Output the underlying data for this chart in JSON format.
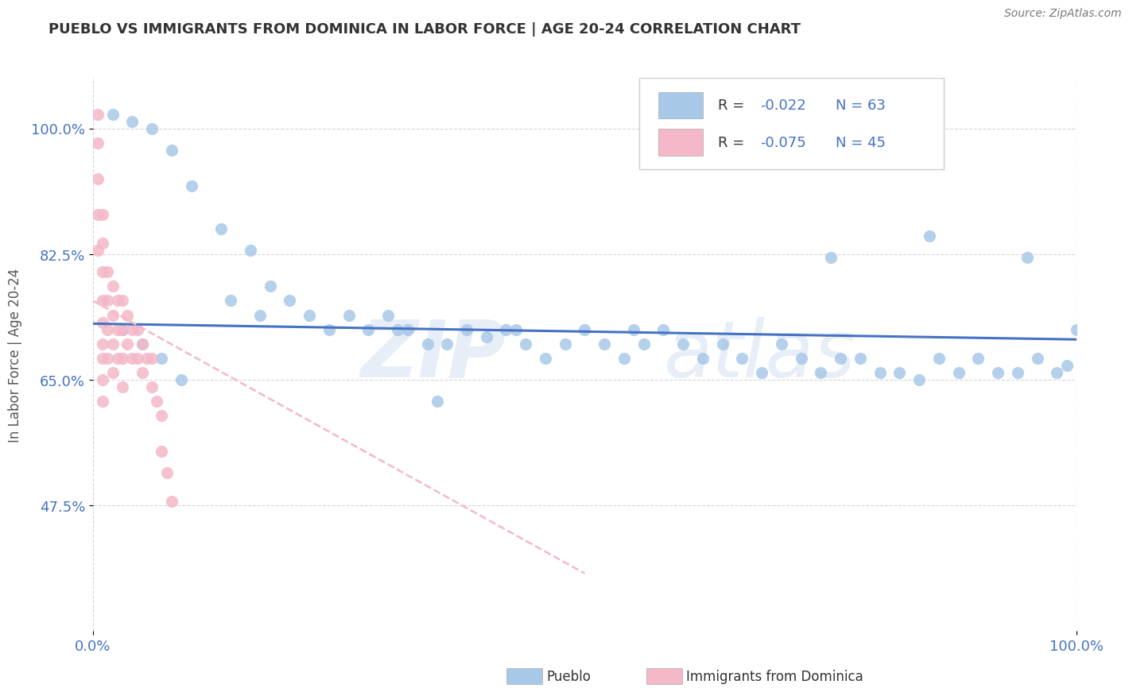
{
  "title": "PUEBLO VS IMMIGRANTS FROM DOMINICA IN LABOR FORCE | AGE 20-24 CORRELATION CHART",
  "source": "Source: ZipAtlas.com",
  "ylabel": "In Labor Force | Age 20-24",
  "xlim": [
    0.0,
    1.0
  ],
  "ylim": [
    0.3,
    1.07
  ],
  "yticks": [
    0.475,
    0.65,
    0.825,
    1.0
  ],
  "ytick_labels": [
    "47.5%",
    "65.0%",
    "82.5%",
    "100.0%"
  ],
  "xticks": [
    0.0,
    1.0
  ],
  "xtick_labels": [
    "0.0%",
    "100.0%"
  ],
  "blue_label": "Pueblo",
  "pink_label": "Immigrants from Dominica",
  "blue_R": "-0.022",
  "blue_N": "63",
  "pink_R": "-0.075",
  "pink_N": "45",
  "blue_color": "#a8c8e8",
  "pink_color": "#f4b8c8",
  "blue_trend_color": "#4472c4",
  "pink_trend_color": "#f4b8c8",
  "blue_scatter_x": [
    0.02,
    0.04,
    0.06,
    0.08,
    0.1,
    0.13,
    0.16,
    0.18,
    0.2,
    0.22,
    0.24,
    0.28,
    0.3,
    0.32,
    0.34,
    0.36,
    0.38,
    0.4,
    0.42,
    0.44,
    0.46,
    0.48,
    0.5,
    0.52,
    0.54,
    0.56,
    0.58,
    0.6,
    0.62,
    0.64,
    0.66,
    0.68,
    0.7,
    0.72,
    0.74,
    0.76,
    0.78,
    0.8,
    0.82,
    0.84,
    0.86,
    0.88,
    0.9,
    0.92,
    0.94,
    0.96,
    0.98,
    1.0,
    0.03,
    0.05,
    0.07,
    0.09,
    0.14,
    0.17,
    0.26,
    0.31,
    0.35,
    0.43,
    0.55,
    0.75,
    0.85,
    0.95,
    0.99
  ],
  "blue_scatter_y": [
    1.02,
    1.01,
    1.0,
    0.97,
    0.92,
    0.86,
    0.83,
    0.78,
    0.76,
    0.74,
    0.72,
    0.72,
    0.74,
    0.72,
    0.7,
    0.7,
    0.72,
    0.71,
    0.72,
    0.7,
    0.68,
    0.7,
    0.72,
    0.7,
    0.68,
    0.7,
    0.72,
    0.7,
    0.68,
    0.7,
    0.68,
    0.66,
    0.7,
    0.68,
    0.66,
    0.68,
    0.68,
    0.66,
    0.66,
    0.65,
    0.68,
    0.66,
    0.68,
    0.66,
    0.66,
    0.68,
    0.66,
    0.72,
    0.72,
    0.7,
    0.68,
    0.65,
    0.76,
    0.74,
    0.74,
    0.72,
    0.62,
    0.72,
    0.72,
    0.82,
    0.85,
    0.82,
    0.67
  ],
  "pink_scatter_x": [
    0.005,
    0.005,
    0.005,
    0.005,
    0.005,
    0.01,
    0.01,
    0.01,
    0.01,
    0.01,
    0.01,
    0.01,
    0.01,
    0.01,
    0.015,
    0.015,
    0.015,
    0.015,
    0.02,
    0.02,
    0.02,
    0.02,
    0.025,
    0.025,
    0.025,
    0.03,
    0.03,
    0.03,
    0.03,
    0.035,
    0.035,
    0.04,
    0.04,
    0.045,
    0.045,
    0.05,
    0.05,
    0.055,
    0.06,
    0.06,
    0.065,
    0.07,
    0.07,
    0.075,
    0.08
  ],
  "pink_scatter_y": [
    1.02,
    0.98,
    0.93,
    0.88,
    0.83,
    0.88,
    0.84,
    0.8,
    0.76,
    0.73,
    0.7,
    0.68,
    0.65,
    0.62,
    0.8,
    0.76,
    0.72,
    0.68,
    0.78,
    0.74,
    0.7,
    0.66,
    0.76,
    0.72,
    0.68,
    0.76,
    0.72,
    0.68,
    0.64,
    0.74,
    0.7,
    0.72,
    0.68,
    0.72,
    0.68,
    0.7,
    0.66,
    0.68,
    0.68,
    0.64,
    0.62,
    0.6,
    0.55,
    0.52,
    0.48
  ],
  "blue_trend_x": [
    0.0,
    1.0
  ],
  "blue_trend_y": [
    0.728,
    0.706
  ],
  "pink_trend_x": [
    0.0,
    0.5
  ],
  "pink_trend_y": [
    0.76,
    0.38
  ],
  "watermark_zip": "ZIP",
  "watermark_atlas": "atlas",
  "background_color": "#ffffff",
  "title_color": "#333333",
  "tick_label_color": "#4472c4",
  "legend_fontsize": 13,
  "title_fontsize": 13
}
